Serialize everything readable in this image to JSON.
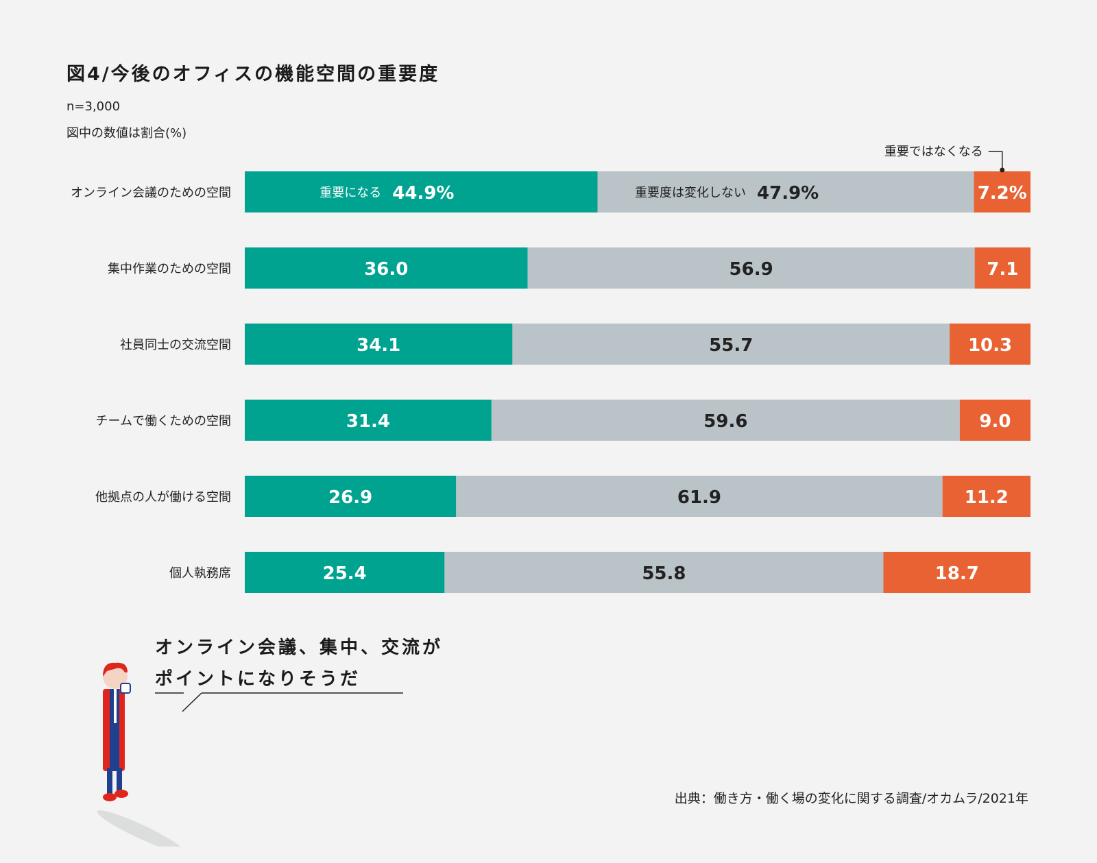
{
  "chart_data": {
    "type": "bar",
    "orientation": "horizontal",
    "stacked": true,
    "title": "図4/今後のオフィスの機能空間の重要度",
    "notes": [
      "n=3,000",
      "図中の数値は割合(%)"
    ],
    "categories": [
      "オンライン会議のための空間",
      "集中作業のための空間",
      "社員同士の交流空間",
      "チームで働くための空間",
      "他拠点の人が働ける空間",
      "個人執務席"
    ],
    "series": [
      {
        "name": "重要になる",
        "color": "#00a390",
        "label_color": "#ffffff",
        "values": [
          44.9,
          36.0,
          34.1,
          31.4,
          26.9,
          25.4
        ],
        "labels": [
          "44.9%",
          "36.0",
          "34.1",
          "31.4",
          "26.9",
          "25.4"
        ]
      },
      {
        "name": "重要度は変化しない",
        "color": "#b9c3c8",
        "label_color": "#222222",
        "values": [
          47.9,
          56.9,
          55.7,
          59.6,
          61.9,
          55.8
        ],
        "labels": [
          "47.9%",
          "56.9",
          "55.7",
          "59.6",
          "61.9",
          "55.8"
        ]
      },
      {
        "name": "重要ではなくなる",
        "color": "#e86233",
        "label_color": "#ffffff",
        "values": [
          7.2,
          7.1,
          10.3,
          9.0,
          11.2,
          18.7
        ],
        "labels": [
          "7.2%",
          "7.1",
          "10.3",
          "9.0",
          "11.2",
          "18.7"
        ]
      }
    ],
    "xlim": [
      0,
      100
    ],
    "legend": "inline-first-row"
  },
  "callout": {
    "line1": "オンライン会議、集中、交流が",
    "line2": "ポイントになりそうだ"
  },
  "source": "出典：働き方・働く場の変化に関する調査/オカムラ/2021年",
  "colors": {
    "background": "#f3f3f3",
    "figure_red": "#e0261c",
    "figure_navy": "#1f3f8f"
  }
}
